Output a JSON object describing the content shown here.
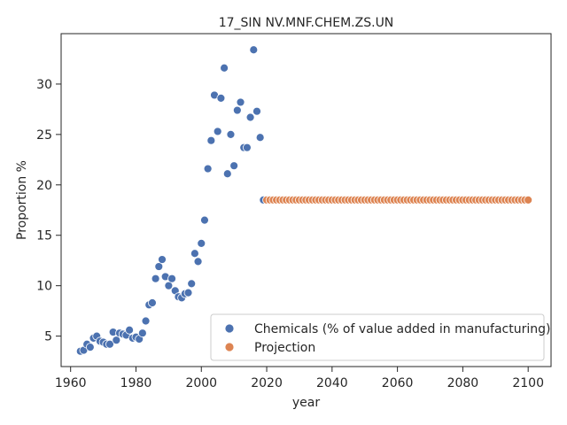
{
  "chart_data": {
    "type": "scatter",
    "title": "17_SIN NV.MNF.CHEM.ZS.UN",
    "xlabel": "year",
    "ylabel": "Proportion %",
    "xlim": [
      1957.1,
      2107.0
    ],
    "ylim": [
      1.98,
      35.0
    ],
    "xticks": [
      1960,
      1980,
      2000,
      2020,
      2040,
      2060,
      2080,
      2100
    ],
    "yticks": [
      5,
      10,
      15,
      20,
      25,
      30
    ],
    "grid": false,
    "legend_position": "bottom-right",
    "series": [
      {
        "name": "Chemicals (% of value added in manufacturing)",
        "color": "#4c72b0",
        "points": [
          [
            1963,
            3.5
          ],
          [
            1964,
            3.6
          ],
          [
            1965,
            4.2
          ],
          [
            1966,
            3.9
          ],
          [
            1967,
            4.8
          ],
          [
            1968,
            5.0
          ],
          [
            1969,
            4.5
          ],
          [
            1970,
            4.4
          ],
          [
            1971,
            4.2
          ],
          [
            1972,
            4.2
          ],
          [
            1973,
            5.4
          ],
          [
            1974,
            4.6
          ],
          [
            1975,
            5.3
          ],
          [
            1976,
            5.2
          ],
          [
            1977,
            5.1
          ],
          [
            1978,
            5.6
          ],
          [
            1979,
            4.8
          ],
          [
            1980,
            4.9
          ],
          [
            1981,
            4.7
          ],
          [
            1982,
            5.3
          ],
          [
            1983,
            6.5
          ],
          [
            1984,
            8.1
          ],
          [
            1985,
            8.3
          ],
          [
            1986,
            10.7
          ],
          [
            1987,
            11.9
          ],
          [
            1988,
            12.6
          ],
          [
            1989,
            10.9
          ],
          [
            1990,
            10.0
          ],
          [
            1991,
            10.7
          ],
          [
            1992,
            9.5
          ],
          [
            1993,
            8.9
          ],
          [
            1994,
            8.8
          ],
          [
            1995,
            9.2
          ],
          [
            1996,
            9.3
          ],
          [
            1997,
            10.2
          ],
          [
            1998,
            13.2
          ],
          [
            1999,
            12.4
          ],
          [
            2000,
            14.2
          ],
          [
            2001,
            16.5
          ],
          [
            2002,
            21.6
          ],
          [
            2003,
            24.4
          ],
          [
            2004,
            28.9
          ],
          [
            2005,
            25.3
          ],
          [
            2006,
            28.6
          ],
          [
            2007,
            31.6
          ],
          [
            2008,
            21.1
          ],
          [
            2009,
            25.0
          ],
          [
            2010,
            21.9
          ],
          [
            2011,
            27.4
          ],
          [
            2012,
            28.2
          ],
          [
            2013,
            23.7
          ],
          [
            2014,
            23.7
          ],
          [
            2015,
            26.7
          ],
          [
            2016,
            33.4
          ],
          [
            2017,
            27.3
          ],
          [
            2018,
            24.7
          ],
          [
            2019,
            18.5
          ]
        ]
      },
      {
        "name": "Projection",
        "color": "#dd8452",
        "start_year": 2020,
        "end_year": 2100,
        "constant_value": 18.5
      }
    ]
  }
}
